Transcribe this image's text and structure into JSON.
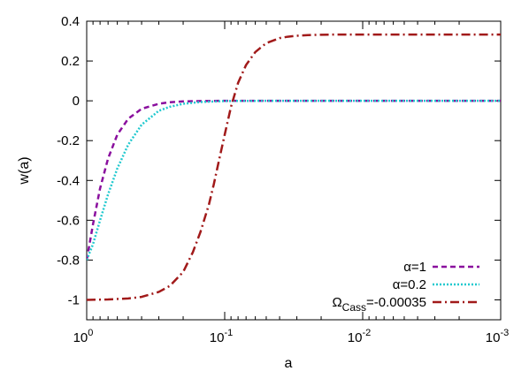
{
  "chart_data": {
    "type": "line",
    "title": "",
    "xlabel": "a",
    "ylabel": "w(a)",
    "x_scale": "log",
    "x_reversed": true,
    "xlim": [
      1,
      0.001
    ],
    "ylim": [
      -1.1,
      0.4
    ],
    "grid": false,
    "legend_position": "bottom-right",
    "x_ticks": [
      {
        "value": 1,
        "base": "10",
        "exp": "0"
      },
      {
        "value": 0.1,
        "base": "10",
        "exp": "-1"
      },
      {
        "value": 0.01,
        "base": "10",
        "exp": "-2"
      },
      {
        "value": 0.001,
        "base": "10",
        "exp": "-3"
      }
    ],
    "y_ticks": [
      {
        "value": 0.4,
        "label": "0.4"
      },
      {
        "value": 0.2,
        "label": "0.2"
      },
      {
        "value": 0,
        "label": "0"
      },
      {
        "value": -0.2,
        "label": "-0.2"
      },
      {
        "value": -0.4,
        "label": "-0.4"
      },
      {
        "value": -0.6,
        "label": "-0.6"
      },
      {
        "value": -0.8,
        "label": "-0.8"
      },
      {
        "value": -1,
        "label": "-1"
      }
    ],
    "series": [
      {
        "name": "α=1",
        "color": "#8a0f9e",
        "dash": "dashed",
        "x": [
          1,
          0.9,
          0.8,
          0.7,
          0.6,
          0.5,
          0.4,
          0.3,
          0.25,
          0.2,
          0.15,
          0.1,
          0.05,
          0.01,
          0.001
        ],
        "y": [
          -0.8,
          -0.62,
          -0.44,
          -0.29,
          -0.17,
          -0.09,
          -0.04,
          -0.015,
          -0.007,
          -0.003,
          -0.001,
          0,
          0,
          0,
          0
        ]
      },
      {
        "name": "α=0.2",
        "color": "#22c9cf",
        "dash": "dotted",
        "x": [
          1,
          0.9,
          0.8,
          0.7,
          0.6,
          0.5,
          0.4,
          0.3,
          0.25,
          0.2,
          0.15,
          0.1,
          0.05,
          0.01,
          0.001
        ],
        "y": [
          -0.8,
          -0.72,
          -0.6,
          -0.47,
          -0.34,
          -0.22,
          -0.12,
          -0.05,
          -0.03,
          -0.015,
          -0.006,
          -0.001,
          0,
          0,
          0
        ]
      },
      {
        "name": "Ω",
        "name_sub": "Cass",
        "name_suffix": "=-0.00035",
        "color": "#a11a1a",
        "dash": "dashdot",
        "x": [
          1,
          0.7,
          0.5,
          0.4,
          0.3,
          0.25,
          0.2,
          0.17,
          0.15,
          0.13,
          0.12,
          0.11,
          0.1,
          0.09,
          0.08,
          0.07,
          0.06,
          0.05,
          0.04,
          0.035,
          0.03,
          0.025,
          0.02,
          0.015,
          0.01,
          0.005,
          0.001
        ],
        "y": [
          -1.0,
          -0.998,
          -0.993,
          -0.985,
          -0.96,
          -0.93,
          -0.86,
          -0.76,
          -0.66,
          -0.52,
          -0.42,
          -0.3,
          -0.17,
          -0.03,
          0.09,
          0.18,
          0.245,
          0.29,
          0.315,
          0.322,
          0.327,
          0.33,
          0.332,
          0.333,
          0.333,
          0.333,
          0.333
        ]
      }
    ]
  }
}
